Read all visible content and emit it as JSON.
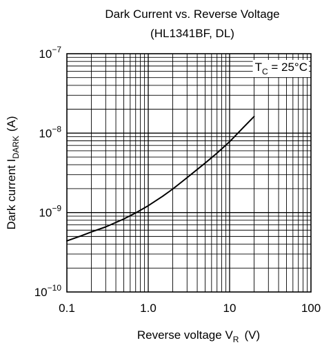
{
  "chart_data": {
    "type": "line",
    "title_line1": "Dark Current vs. Reverse Voltage",
    "title_line2": "(HL1341BF, DL)",
    "x_scale": "log",
    "y_scale": "log",
    "xlim": [
      0.1,
      100
    ],
    "ylim": [
      1e-10,
      1e-07
    ],
    "x_ticks": [
      {
        "value": 0.1,
        "label": "0.1"
      },
      {
        "value": 1,
        "label": "1.0"
      },
      {
        "value": 10,
        "label": "10"
      },
      {
        "value": 100,
        "label": "100"
      }
    ],
    "y_ticks": [
      {
        "value": 1e-10,
        "base": "10",
        "exp": "−10"
      },
      {
        "value": 1e-09,
        "base": "10",
        "exp": "−9"
      },
      {
        "value": 1e-08,
        "base": "10",
        "exp": "−8"
      },
      {
        "value": 1e-07,
        "base": "10",
        "exp": "−7"
      }
    ],
    "xlabel": {
      "main": "Reverse voltage V",
      "sub": "R",
      "unit": "(V)"
    },
    "ylabel": {
      "main": "Dark current I",
      "sub": "DARK",
      "unit": "(A)"
    },
    "annotation": {
      "main": "T",
      "sub": "C",
      "rest": " = 25°C"
    },
    "grid": true,
    "series": [
      {
        "x": [
          0.1,
          0.15,
          0.2,
          0.3,
          0.5,
          0.7,
          1.0,
          1.5,
          2.0,
          3.0,
          5.0,
          7.0,
          10.0,
          15.0,
          20.0
        ],
        "y": [
          4.4e-10,
          5.1e-10,
          5.7e-10,
          6.6e-10,
          8.3e-10,
          9.9e-10,
          1.22e-09,
          1.6e-09,
          1.98e-09,
          2.75e-09,
          4.2e-09,
          5.6e-09,
          7.8e-09,
          1.2e-08,
          1.62e-08
        ]
      }
    ]
  }
}
